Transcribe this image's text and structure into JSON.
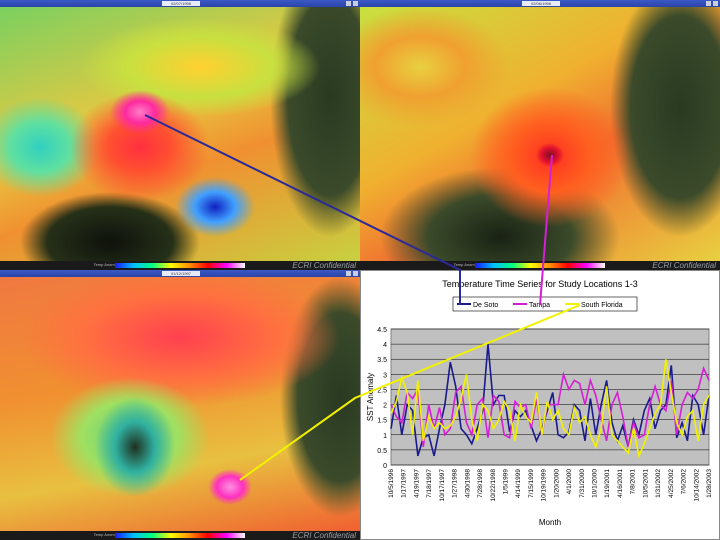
{
  "panels": [
    {
      "id": "top-left",
      "date": "02/07/1998",
      "brand": "ECRI Confidential",
      "scale_label": "Temp Anomaly"
    },
    {
      "id": "top-right",
      "date": "02/06/1998",
      "brand": "ECRI Confidential",
      "scale_label": "Temp Anomaly"
    },
    {
      "id": "bottom-left",
      "date": "01/12/1997",
      "brand": "ECRI Confidential",
      "scale_label": "Temp Anomaly"
    }
  ],
  "colors": {
    "de_soto": "#1a1a8c",
    "tampa": "#d41fd4",
    "south_florida": "#f2f200",
    "plot_bg": "#c0c0c0"
  },
  "chart_data": {
    "type": "line",
    "title": "Temperature Time Series for Study Locations 1-3",
    "xlabel": "Month",
    "ylabel": "SST Anomaly",
    "ylim": [
      0,
      4.5
    ],
    "yticks": [
      0,
      0.5,
      1,
      1.5,
      2,
      2.5,
      3,
      3.5,
      4,
      4.5
    ],
    "grid": true,
    "legend_position": "top",
    "x_tick_labels": [
      "10/5/1996",
      "1/17/1997",
      "4/19/1997",
      "7/18/1997",
      "10/17/1997",
      "1/27/1998",
      "4/30/1998",
      "7/28/1998",
      "10/22/1998",
      "1/5/1999",
      "4/14/1999",
      "7/15/1999",
      "10/19/1999",
      "1/20/2000",
      "4/1/2000",
      "7/31/2000",
      "10/1/2000",
      "1/19/2001",
      "4/16/2001",
      "7/8/2001",
      "10/5/2001",
      "1/31/2002",
      "4/25/2002",
      "7/6/2002",
      "10/14/2002",
      "1/28/2003"
    ],
    "series": [
      {
        "name": "De Soto",
        "color": "#1a1a8c",
        "values": [
          1.2,
          2.3,
          1.0,
          2.0,
          1.8,
          0.3,
          0.9,
          1.0,
          0.3,
          1.2,
          2.0,
          3.4,
          2.6,
          1.2,
          1.0,
          0.7,
          1.2,
          1.8,
          4.0,
          2.0,
          2.3,
          2.3,
          1.1,
          1.8,
          1.6,
          1.8,
          1.3,
          0.8,
          1.2,
          1.8,
          2.4,
          1.0,
          0.9,
          1.1,
          2.0,
          1.8,
          0.8,
          2.2,
          1.0,
          2.0,
          2.8,
          1.4,
          0.8,
          1.3,
          0.6,
          1.5,
          1.0,
          1.8,
          2.2,
          1.2,
          1.8,
          2.0,
          3.3,
          0.9,
          1.4,
          0.8,
          2.3,
          2.0,
          1.0,
          2.3
        ]
      },
      {
        "name": "Tampa",
        "color": "#d41fd4",
        "values": [
          2.0,
          1.6,
          1.4,
          2.4,
          2.2,
          2.5,
          0.6,
          2.0,
          1.2,
          1.9,
          1.0,
          1.2,
          2.4,
          2.6,
          1.4,
          1.0,
          2.0,
          2.2,
          0.9,
          2.3,
          2.1,
          1.0,
          0.9,
          2.1,
          1.9,
          2.0,
          1.2,
          2.2,
          1.0,
          2.0,
          2.0,
          2.0,
          3.0,
          2.5,
          2.8,
          2.7,
          2.0,
          2.8,
          2.3,
          1.5,
          0.8,
          2.0,
          2.4,
          1.6,
          0.6,
          1.4,
          0.9,
          1.0,
          2.0,
          2.6,
          2.0,
          1.8,
          2.8,
          1.0,
          2.0,
          2.4,
          2.2,
          2.5,
          3.2,
          2.8
        ]
      },
      {
        "name": "South Florida",
        "color": "#f2f200",
        "values": [
          1.7,
          2.1,
          2.9,
          2.4,
          1.0,
          2.8,
          0.8,
          1.6,
          1.2,
          1.4,
          1.2,
          1.3,
          1.6,
          2.2,
          3.0,
          1.5,
          0.8,
          2.0,
          1.8,
          1.2,
          1.5,
          2.1,
          1.8,
          0.8,
          2.0,
          1.6,
          1.4,
          2.4,
          1.0,
          2.1,
          1.5,
          1.8,
          1.2,
          1.0,
          1.9,
          1.4,
          1.6,
          1.0,
          0.6,
          1.2,
          2.6,
          1.0,
          0.8,
          0.6,
          0.4,
          1.2,
          0.3,
          0.7,
          1.2,
          1.7,
          2.0,
          3.5,
          2.4,
          1.4,
          1.0,
          1.6,
          1.8,
          0.8,
          2.0,
          2.3
        ]
      }
    ]
  }
}
